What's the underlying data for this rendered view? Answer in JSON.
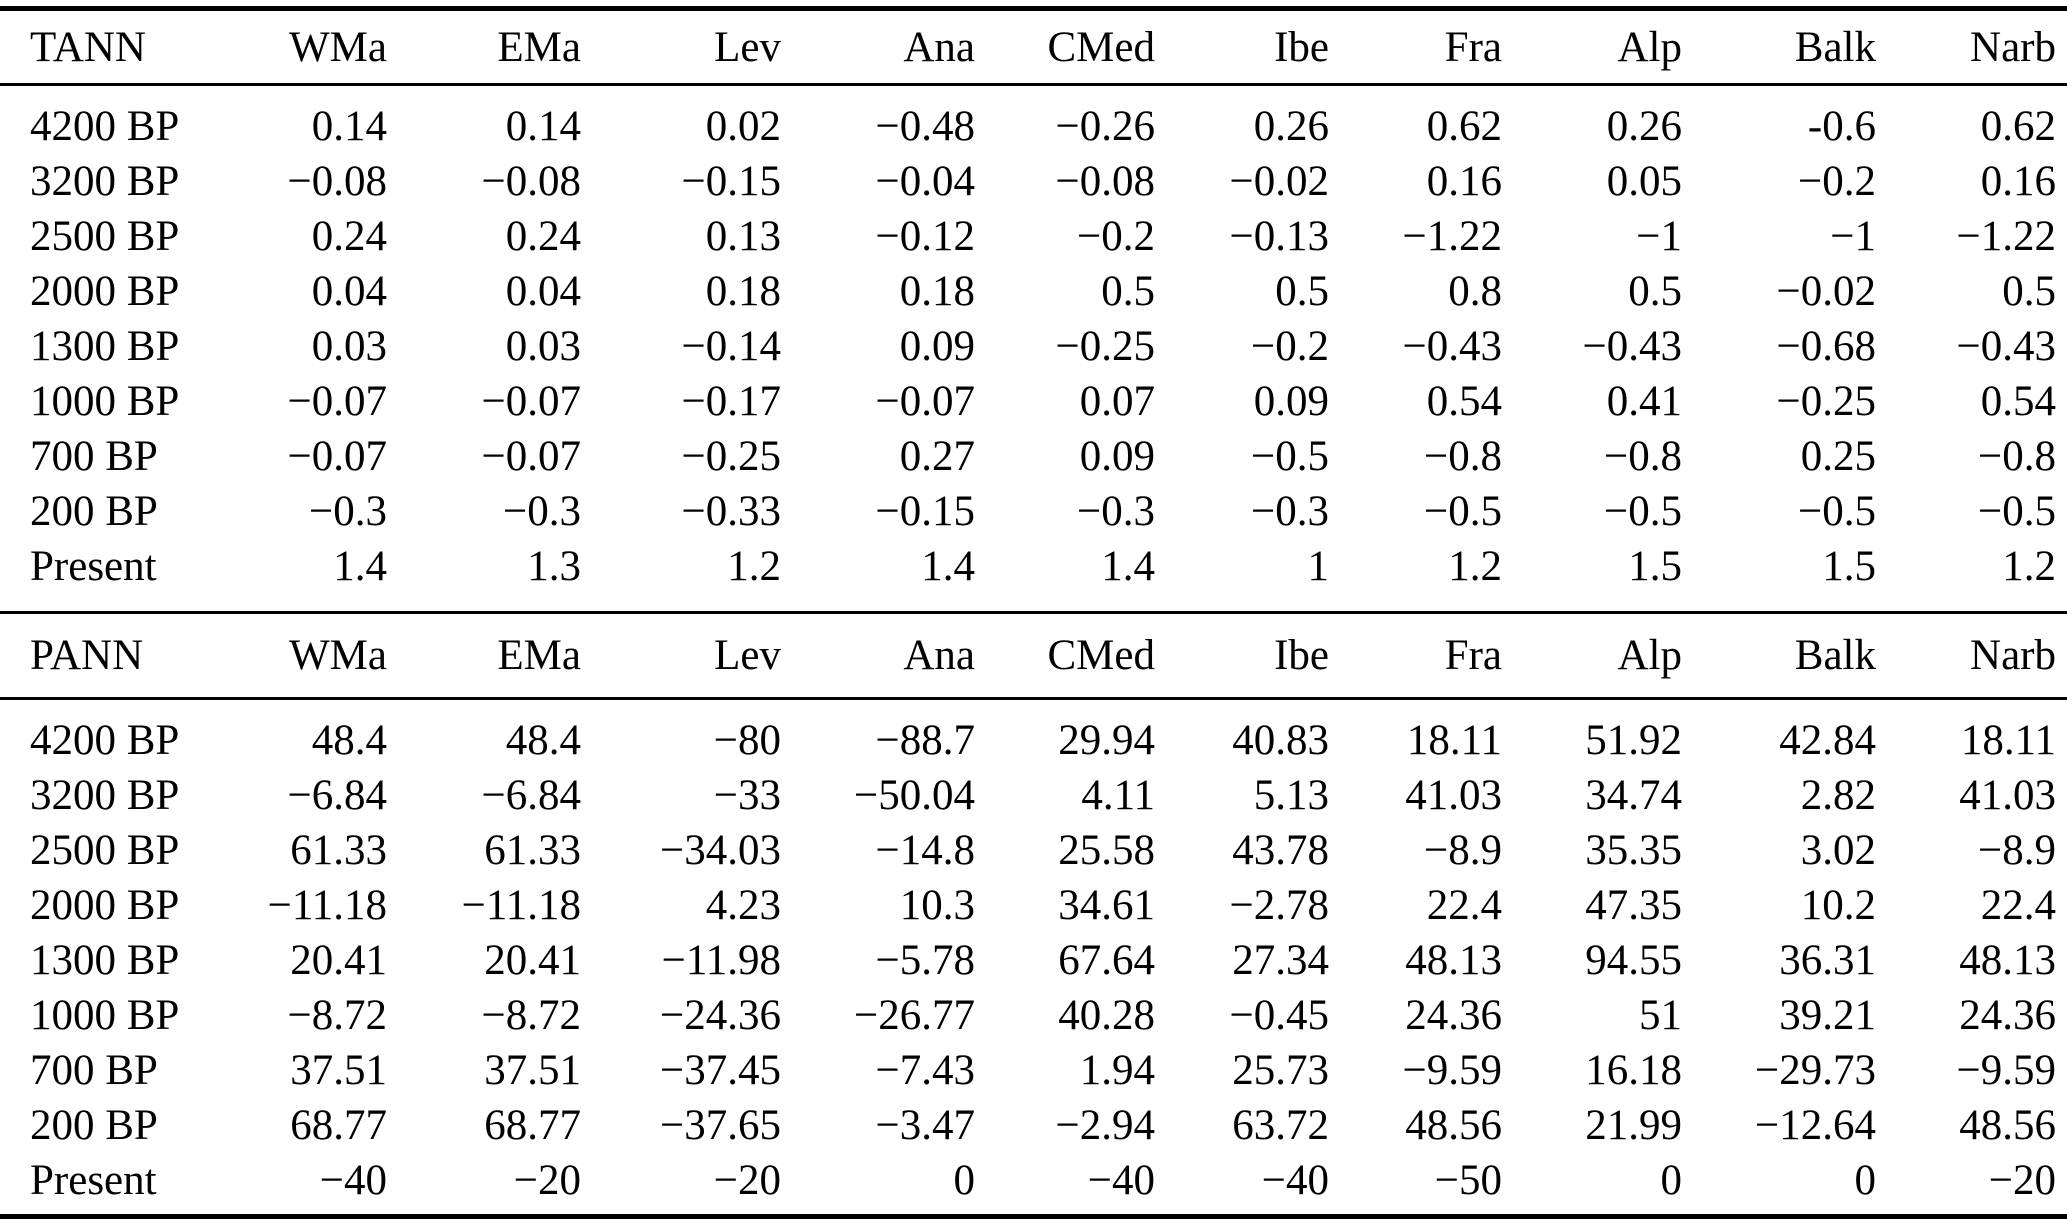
{
  "sections": [
    {
      "id": "TANN",
      "header": [
        "TANN",
        "WMa",
        "EMa",
        "Lev",
        "Ana",
        "CMed",
        "Ibe",
        "Fra",
        "Alp",
        "Balk",
        "Narb"
      ],
      "rows": [
        {
          "label": "4200 BP",
          "values": [
            "0.14",
            "0.14",
            "0.02",
            "−0.48",
            "−0.26",
            "0.26",
            "0.62",
            "0.26",
            "-0.6",
            "0.62"
          ]
        },
        {
          "label": "3200 BP",
          "values": [
            "−0.08",
            "−0.08",
            "−0.15",
            "−0.04",
            "−0.08",
            "−0.02",
            "0.16",
            "0.05",
            "−0.2",
            "0.16"
          ]
        },
        {
          "label": "2500 BP",
          "values": [
            "0.24",
            "0.24",
            "0.13",
            "−0.12",
            "−0.2",
            "−0.13",
            "−1.22",
            "−1",
            "−1",
            "−1.22"
          ]
        },
        {
          "label": "2000 BP",
          "values": [
            "0.04",
            "0.04",
            "0.18",
            "0.18",
            "0.5",
            "0.5",
            "0.8",
            "0.5",
            "−0.02",
            "0.5"
          ]
        },
        {
          "label": "1300 BP",
          "values": [
            "0.03",
            "0.03",
            "−0.14",
            "0.09",
            "−0.25",
            "−0.2",
            "−0.43",
            "−0.43",
            "−0.68",
            "−0.43"
          ]
        },
        {
          "label": "1000 BP",
          "values": [
            "−0.07",
            "−0.07",
            "−0.17",
            "−0.07",
            "0.07",
            "0.09",
            "0.54",
            "0.41",
            "−0.25",
            "0.54"
          ]
        },
        {
          "label": "700 BP",
          "values": [
            "−0.07",
            "−0.07",
            "−0.25",
            "0.27",
            "0.09",
            "−0.5",
            "−0.8",
            "−0.8",
            "0.25",
            "−0.8"
          ]
        },
        {
          "label": "200 BP",
          "values": [
            "−0.3",
            "−0.3",
            "−0.33",
            "−0.15",
            "−0.3",
            "−0.3",
            "−0.5",
            "−0.5",
            "−0.5",
            "−0.5"
          ]
        },
        {
          "label": "Present",
          "values": [
            "1.4",
            "1.3",
            "1.2",
            "1.4",
            "1.4",
            "1",
            "1.2",
            "1.5",
            "1.5",
            "1.2"
          ]
        }
      ]
    },
    {
      "id": "PANN",
      "header": [
        "PANN",
        "WMa",
        "EMa",
        "Lev",
        "Ana",
        "CMed",
        "Ibe",
        "Fra",
        "Alp",
        "Balk",
        "Narb"
      ],
      "rows": [
        {
          "label": "4200 BP",
          "values": [
            "48.4",
            "48.4",
            "−80",
            "−88.7",
            "29.94",
            "40.83",
            "18.11",
            "51.92",
            "42.84",
            "18.11"
          ]
        },
        {
          "label": "3200 BP",
          "values": [
            "−6.84",
            "−6.84",
            "−33",
            "−50.04",
            "4.11",
            "5.13",
            "41.03",
            "34.74",
            "2.82",
            "41.03"
          ]
        },
        {
          "label": "2500 BP",
          "values": [
            "61.33",
            "61.33",
            "−34.03",
            "−14.8",
            "25.58",
            "43.78",
            "−8.9",
            "35.35",
            "3.02",
            "−8.9"
          ]
        },
        {
          "label": "2000 BP",
          "values": [
            "−11.18",
            "−11.18",
            "4.23",
            "10.3",
            "34.61",
            "−2.78",
            "22.4",
            "47.35",
            "10.2",
            "22.4"
          ]
        },
        {
          "label": "1300 BP",
          "values": [
            "20.41",
            "20.41",
            "−11.98",
            "−5.78",
            "67.64",
            "27.34",
            "48.13",
            "94.55",
            "36.31",
            "48.13"
          ]
        },
        {
          "label": "1000 BP",
          "values": [
            "−8.72",
            "−8.72",
            "−24.36",
            "−26.77",
            "40.28",
            "−0.45",
            "24.36",
            "51",
            "39.21",
            "24.36"
          ]
        },
        {
          "label": "700 BP",
          "values": [
            "37.51",
            "37.51",
            "−37.45",
            "−7.43",
            "1.94",
            "25.73",
            "−9.59",
            "16.18",
            "−29.73",
            "−9.59"
          ]
        },
        {
          "label": "200 BP",
          "values": [
            "68.77",
            "68.77",
            "−37.65",
            "−3.47",
            "−2.94",
            "63.72",
            "48.56",
            "21.99",
            "−12.64",
            "48.56"
          ]
        },
        {
          "label": "Present",
          "values": [
            "−40",
            "−20",
            "−20",
            "0",
            "−40",
            "−40",
            "−50",
            "0",
            "0",
            "−20"
          ]
        }
      ]
    }
  ]
}
